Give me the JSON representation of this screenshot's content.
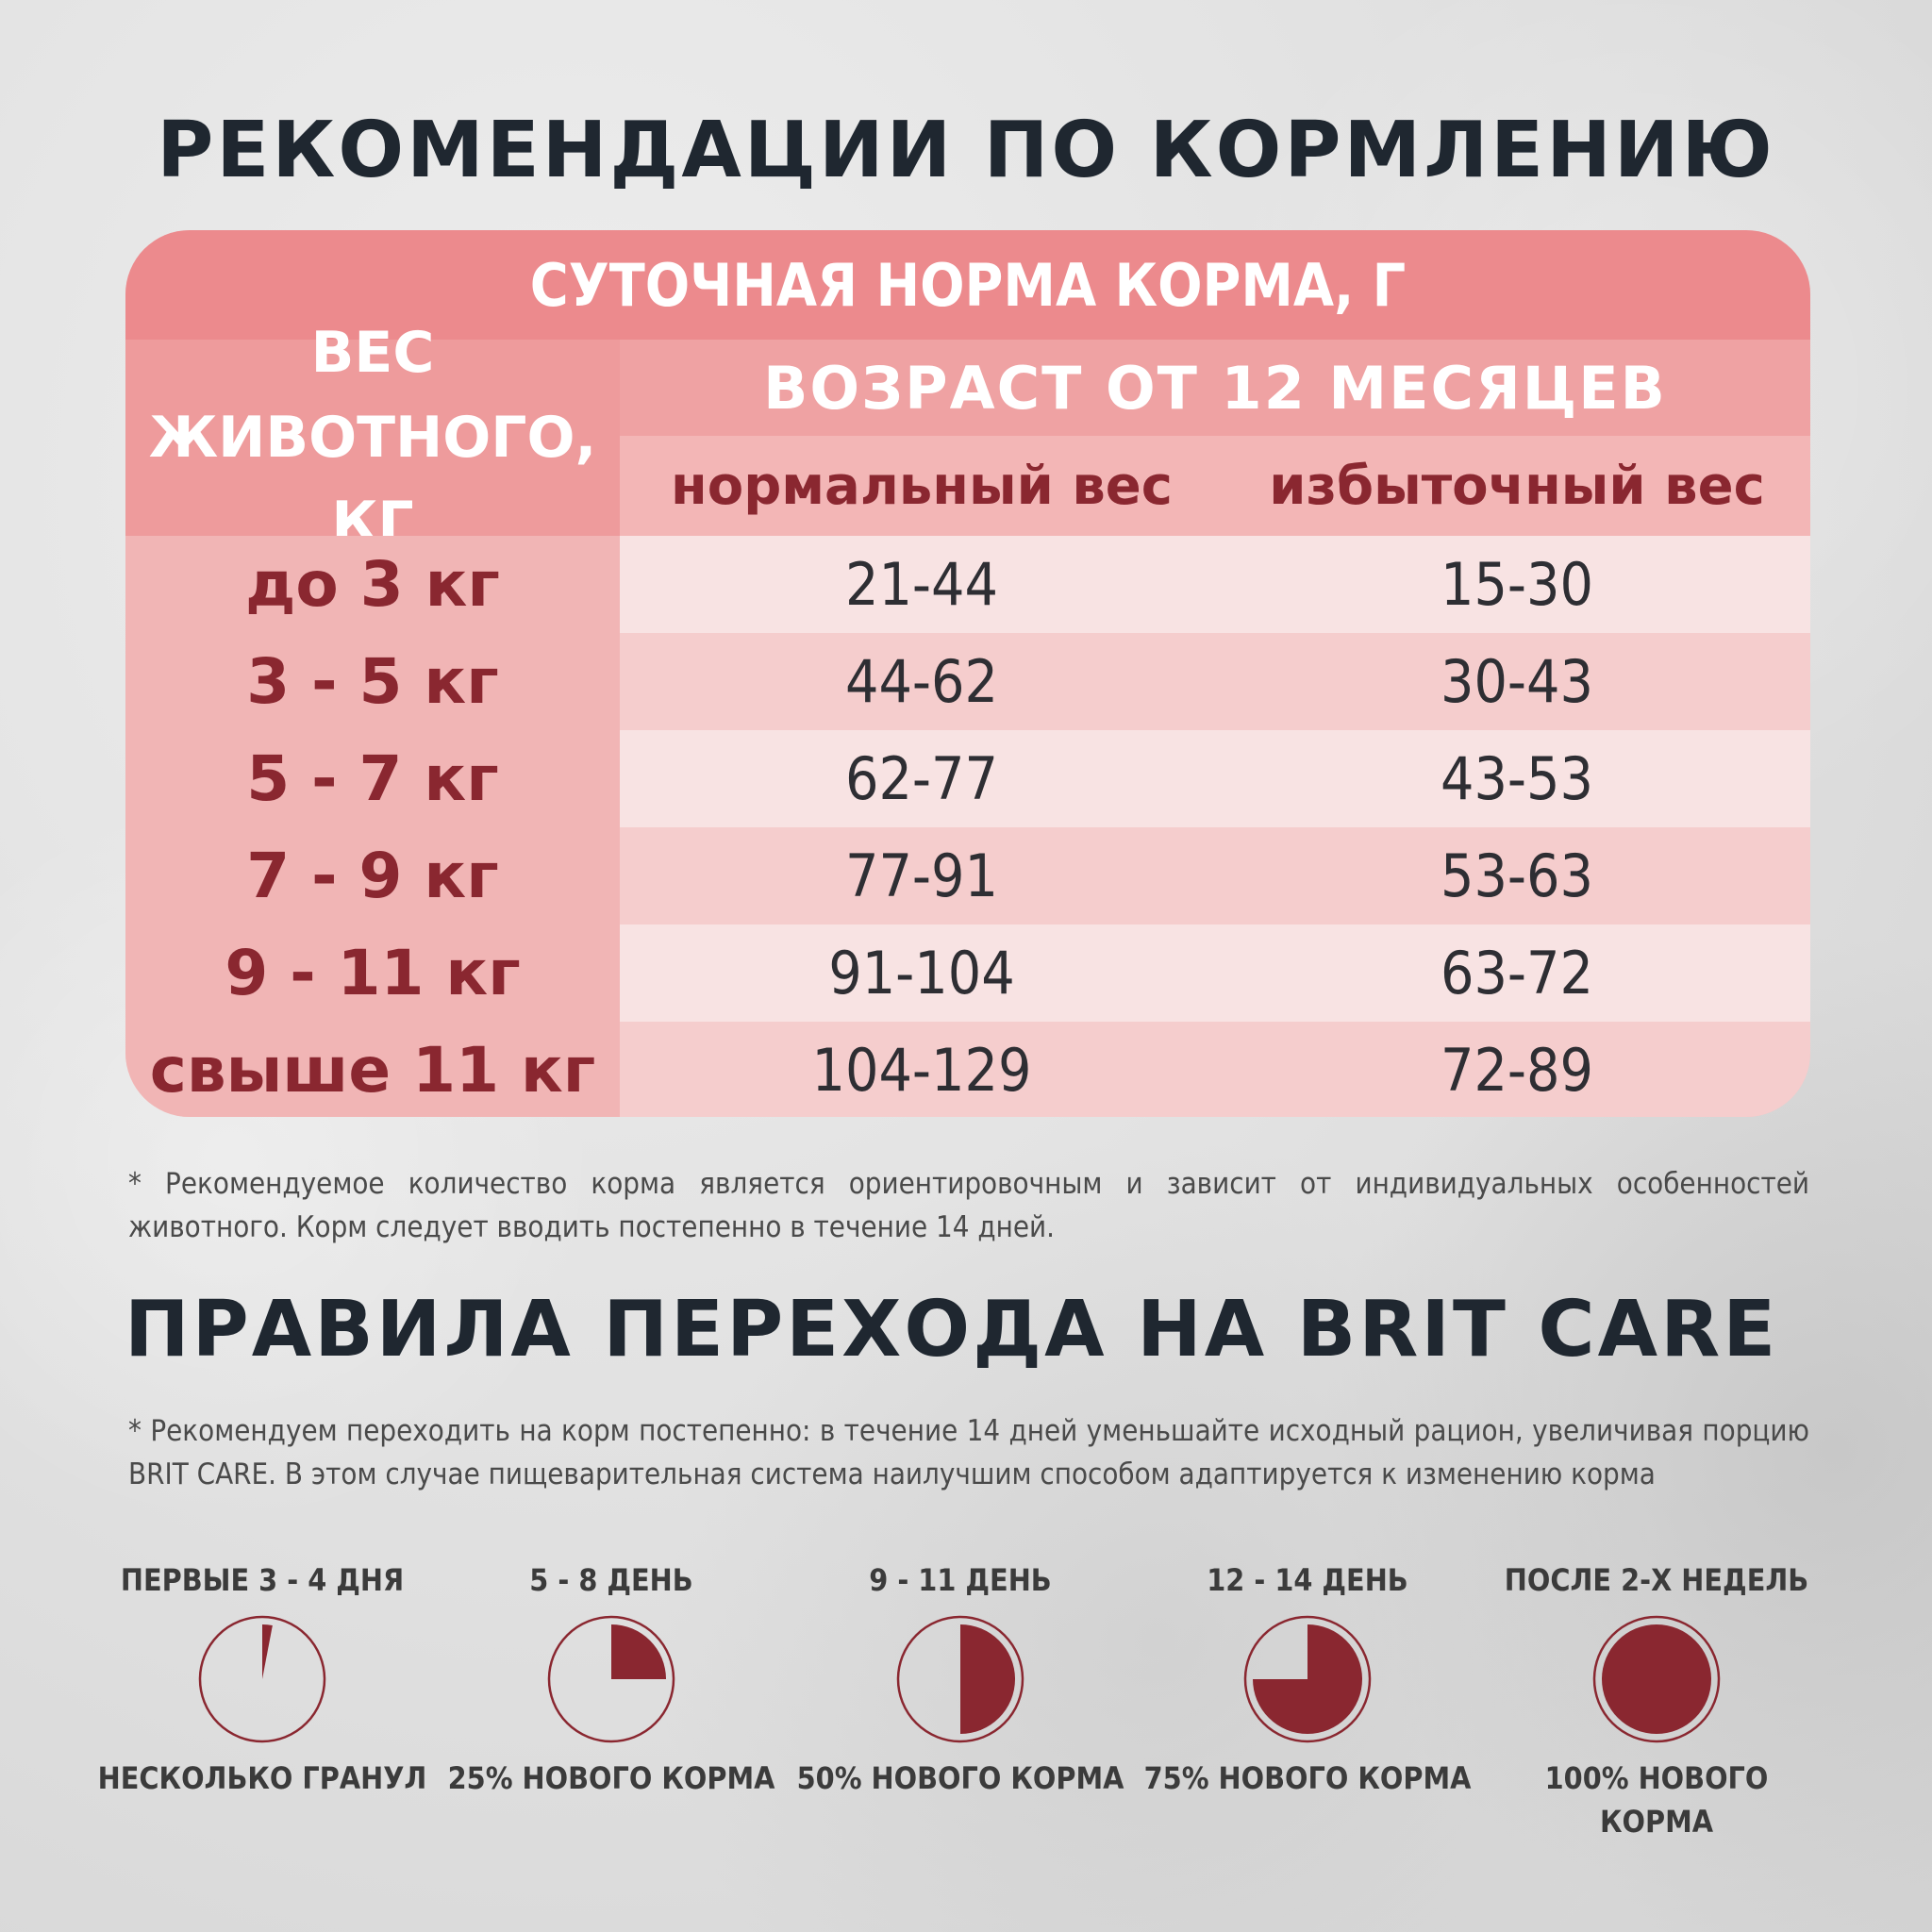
{
  "title_feeding": "РЕКОМЕНДАЦИИ ПО КОРМЛЕНИЮ",
  "table": {
    "title": "СУТОЧНАЯ НОРМА КОРМА, Г",
    "weight_header_line1": "ВЕС",
    "weight_header_line2": "ЖИВОТНОГО, КГ",
    "age_header": "ВОЗРАСТ ОТ 12 МЕСЯЦЕВ",
    "col_normal": "нормальный вес",
    "col_over": "избыточный вес",
    "rows": [
      {
        "weight": "до 3 кг",
        "normal": "21-44",
        "over": "15-30"
      },
      {
        "weight": "3 - 5 кг",
        "normal": "44-62",
        "over": "30-43"
      },
      {
        "weight": "5 - 7 кг",
        "normal": "62-77",
        "over": "43-53"
      },
      {
        "weight": "7 - 9 кг",
        "normal": "77-91",
        "over": "53-63"
      },
      {
        "weight": "9 - 11 кг",
        "normal": "91-104",
        "over": "63-72"
      },
      {
        "weight": "свыше 11 кг",
        "normal": "104-129",
        "over": "72-89"
      }
    ]
  },
  "note_feeding": "* Рекомендуемое количество корма является ориентировочным и зависит от индивидуальных особенностей животного. Корм следует вводить постепенно в течение 14 дней.",
  "title_transition": "ПРАВИЛА ПЕРЕХОДА НА BRIT CARE",
  "note_transition": "* Рекомендуем переходить на корм постепенно: в течение 14 дней уменьшайте исходный рацион, увеличивая порцию BRIT CARE. В этом случае пищеварительная система наилучшим способом адаптируется к изменению корма",
  "colors": {
    "accent": "#8a2730",
    "table_header": "#ec8a8d",
    "dark_text": "#1f2730"
  },
  "steps": [
    {
      "period": "ПЕРВЫЕ 3 - 4 ДНЯ",
      "caption": "НЕСКОЛЬКО ГРАНУЛ",
      "fraction": 0.03
    },
    {
      "period": "5 - 8 ДЕНЬ",
      "caption": "25% НОВОГО КОРМА",
      "fraction": 0.25
    },
    {
      "period": "9 - 11 ДЕНЬ",
      "caption": "50% НОВОГО КОРМА",
      "fraction": 0.5
    },
    {
      "period": "12 - 14 ДЕНЬ",
      "caption": "75% НОВОГО КОРМА",
      "fraction": 0.75
    },
    {
      "period": "ПОСЛЕ 2-Х НЕДЕЛЬ",
      "caption": "100% НОВОГО КОРМА",
      "fraction": 1.0
    }
  ]
}
